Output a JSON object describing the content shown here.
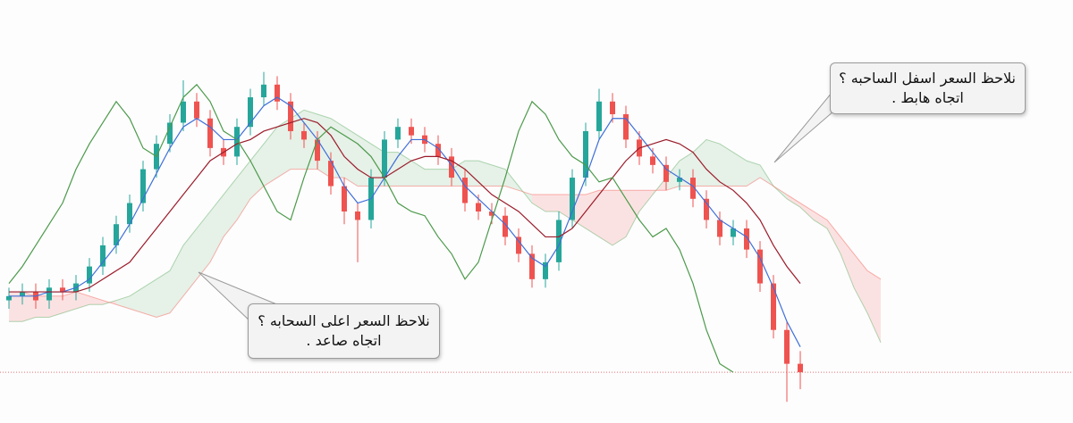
{
  "chart_data": {
    "type": "candlestick",
    "ylim": [
      0,
      100
    ],
    "up_color": "#26a69a",
    "down_color": "#ef5350",
    "ohlc": {
      "open": [
        29,
        30,
        31,
        29,
        32,
        31,
        33,
        37,
        42,
        47,
        52,
        60,
        66,
        71,
        76,
        72,
        65,
        63,
        70,
        77,
        80,
        76,
        69,
        67,
        62,
        56,
        50,
        48,
        58,
        67,
        70,
        68,
        66,
        63,
        58,
        52,
        50,
        49,
        44,
        40,
        34,
        38,
        48,
        58,
        69,
        76,
        73,
        67,
        63,
        61,
        57,
        58,
        53,
        48,
        44,
        46,
        41,
        33,
        22,
        14
      ],
      "high": [
        32,
        33,
        33,
        34,
        34,
        35,
        39,
        44,
        49,
        54,
        62,
        68,
        73,
        81,
        78,
        74,
        67,
        72,
        79,
        83,
        82,
        78,
        71,
        69,
        64,
        58,
        52,
        60,
        69,
        72,
        72,
        70,
        68,
        65,
        60,
        54,
        52,
        51,
        46,
        42,
        40,
        50,
        60,
        71,
        79,
        78,
        75,
        69,
        65,
        63,
        60,
        60,
        55,
        50,
        48,
        48,
        43,
        35,
        24,
        17
      ],
      "low": [
        27,
        28,
        27,
        27,
        29,
        29,
        31,
        35,
        40,
        45,
        50,
        58,
        64,
        69,
        70,
        63,
        61,
        61,
        68,
        75,
        74,
        67,
        65,
        60,
        54,
        47,
        38,
        46,
        56,
        65,
        66,
        64,
        61,
        56,
        50,
        48,
        47,
        42,
        38,
        32,
        32,
        36,
        46,
        56,
        67,
        71,
        65,
        61,
        59,
        55,
        55,
        51,
        46,
        42,
        42,
        39,
        31,
        20,
        5,
        8
      ],
      "close": [
        30,
        31,
        29,
        32,
        31,
        33,
        37,
        42,
        47,
        52,
        60,
        66,
        71,
        76,
        72,
        65,
        63,
        70,
        77,
        80,
        76,
        69,
        67,
        62,
        56,
        50,
        48,
        58,
        67,
        70,
        68,
        66,
        63,
        58,
        52,
        50,
        49,
        44,
        40,
        34,
        38,
        48,
        58,
        69,
        76,
        73,
        67,
        63,
        61,
        57,
        58,
        53,
        48,
        44,
        46,
        41,
        33,
        22,
        14,
        12
      ]
    },
    "lines": [
      {
        "color": "#3f6fd8",
        "values": [
          30,
          30,
          30,
          31,
          31,
          32,
          34,
          38,
          42,
          47,
          53,
          59,
          65,
          70,
          72,
          70,
          67,
          67,
          71,
          75,
          77,
          75,
          71,
          67,
          62,
          56,
          52,
          53,
          58,
          63,
          67,
          67,
          65,
          61,
          56,
          53,
          50,
          47,
          43,
          39,
          37,
          42,
          50,
          58,
          67,
          72,
          72,
          68,
          64,
          60,
          58,
          56,
          52,
          48,
          46,
          44,
          39,
          32,
          24,
          18
        ]
      },
      {
        "color": "#9b1c2a",
        "values": [
          31,
          31,
          31,
          31,
          31,
          31,
          32,
          34,
          36,
          38,
          42,
          46,
          50,
          54,
          58,
          62,
          64,
          66,
          67,
          69,
          70,
          71,
          72,
          71,
          68,
          63,
          60,
          58,
          58,
          60,
          62,
          63,
          63,
          62,
          60,
          57,
          54,
          52,
          50,
          47,
          44,
          44,
          46,
          50,
          54,
          58,
          62,
          65,
          66,
          67,
          66,
          64,
          60,
          57,
          55,
          52,
          48,
          42,
          37,
          33
        ]
      },
      {
        "color": "#4c9a4a",
        "values": [
          33,
          37,
          42,
          47,
          52,
          60,
          66,
          71,
          76,
          72,
          65,
          63,
          70,
          77,
          80,
          76,
          69,
          67,
          62,
          56,
          50,
          48,
          58,
          67,
          70,
          68,
          66,
          63,
          58,
          52,
          50,
          49,
          44,
          40,
          34,
          38,
          48,
          58,
          69,
          76,
          73,
          67,
          63,
          61,
          57,
          58,
          53,
          48,
          44,
          46,
          41,
          33,
          22,
          14,
          12
        ]
      }
    ],
    "cloud": {
      "up_color": "#43a047",
      "down_color": "#f44336",
      "span_a": [
        24,
        24,
        25,
        25,
        26,
        27,
        28,
        28,
        29,
        30,
        32,
        34,
        36,
        42,
        46,
        50,
        54,
        58,
        62,
        66,
        70,
        72,
        74,
        73,
        72,
        70,
        68,
        66,
        64,
        64,
        62,
        60,
        60,
        60,
        62,
        62,
        61,
        60,
        56,
        52,
        50,
        50,
        48,
        46,
        44,
        42,
        44,
        50,
        54,
        58,
        62,
        64,
        67,
        66,
        64,
        62,
        61,
        56,
        53,
        51,
        48,
        46,
        40,
        32,
        26,
        19
      ],
      "span_b": [
        31,
        31,
        30,
        30,
        30,
        31,
        30,
        29,
        28,
        27,
        26,
        25,
        26,
        30,
        34,
        38,
        44,
        48,
        53,
        56,
        58,
        60,
        60,
        60,
        58,
        58,
        56,
        56,
        56,
        56,
        56,
        56,
        56,
        56,
        56,
        56,
        56,
        56,
        55,
        54,
        54,
        54,
        54,
        54,
        55,
        55,
        55,
        55,
        55,
        55,
        56,
        56,
        56,
        56,
        56,
        56,
        58,
        56,
        54,
        52,
        50,
        48,
        44,
        40,
        36,
        34
      ]
    },
    "price_line_color": "#e57373",
    "annotations": [
      {
        "lines": [
          "نلاحظ السعر اسفل الساحبه ؟",
          "اتجاه هابط ."
        ]
      },
      {
        "lines": [
          "نلاحظ السعر اعلى السحابه ؟",
          "اتجاه صاعد ."
        ]
      }
    ]
  }
}
